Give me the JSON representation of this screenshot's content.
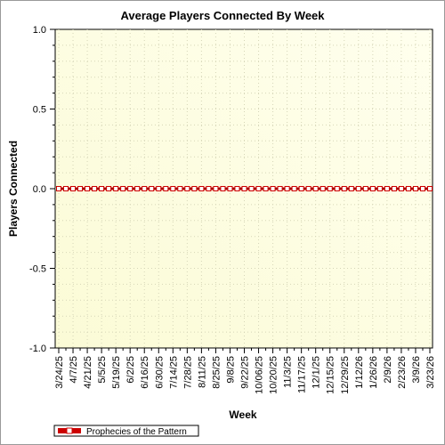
{
  "chart_data": {
    "type": "line",
    "title": "Average Players Connected By Week",
    "xlabel": "Week",
    "ylabel": "Players Connected",
    "ylim": [
      -1.0,
      1.0
    ],
    "y_ticks": [
      "1.0",
      "0.5",
      "0.0",
      "-0.5",
      "-1.0"
    ],
    "y_tick_values": [
      1.0,
      0.5,
      0.0,
      -0.5,
      -1.0
    ],
    "x_tick_labels": [
      "3/24/25",
      "4/7/25",
      "4/21/25",
      "5/5/25",
      "5/19/25",
      "6/2/25",
      "6/16/25",
      "6/30/25",
      "7/14/25",
      "7/28/25",
      "8/11/25",
      "8/25/25",
      "9/8/25",
      "9/22/25",
      "10/06/25",
      "10/20/25",
      "11/3/25",
      "11/17/25",
      "12/1/25",
      "12/15/25",
      "12/29/25",
      "1/12/26",
      "1/26/26",
      "2/9/26",
      "2/23/26",
      "3/9/26",
      "3/23/26"
    ],
    "point_count": 53,
    "grid": true,
    "legend_position": "bottom-left",
    "series": [
      {
        "name": "Prophecies of the Pattern",
        "color": "#cc0000",
        "values": [
          0,
          0,
          0,
          0,
          0,
          0,
          0,
          0,
          0,
          0,
          0,
          0,
          0,
          0,
          0,
          0,
          0,
          0,
          0,
          0,
          0,
          0,
          0,
          0,
          0,
          0,
          0,
          0,
          0,
          0,
          0,
          0,
          0,
          0,
          0,
          0,
          0,
          0,
          0,
          0,
          0,
          0,
          0,
          0,
          0,
          0,
          0,
          0,
          0,
          0,
          0,
          0,
          0
        ]
      }
    ]
  }
}
